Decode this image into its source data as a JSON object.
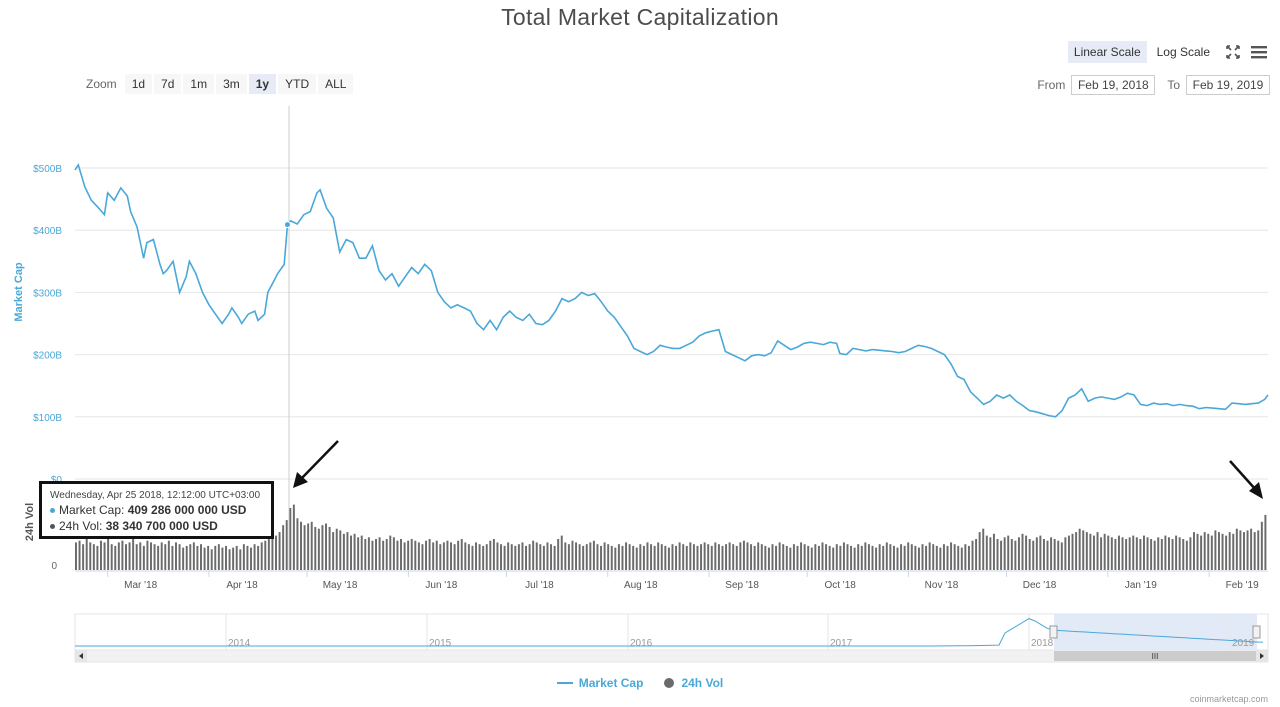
{
  "title": "Total Market Capitalization",
  "scale": {
    "linear": "Linear Scale",
    "log": "Log Scale",
    "icons": [
      "fullscreen-icon",
      "menu-icon"
    ]
  },
  "zoom": {
    "label": "Zoom",
    "buttons": [
      "1d",
      "7d",
      "1m",
      "3m",
      "1y",
      "YTD",
      "ALL"
    ],
    "active": "1y"
  },
  "range": {
    "from_label": "From",
    "from": "Feb 19, 2018",
    "to_label": "To",
    "to": "Feb 19, 2019"
  },
  "colors": {
    "market_cap": "#4aa8d8",
    "volume": "#6b6b6b",
    "navigator_mask": "#dfe8f7"
  },
  "chart_data": {
    "type": "line",
    "x_start": "2018-02-19",
    "x_end": "2019-02-19",
    "x_ticks": [
      "Mar '18",
      "Apr '18",
      "May '18",
      "Jun '18",
      "Jul '18",
      "Aug '18",
      "Sep '18",
      "Oct '18",
      "Nov '18",
      "Dec '18",
      "Jan '19",
      "Feb '19"
    ],
    "y_label": "Market Cap",
    "y_ticks": [
      "$0",
      "$100B",
      "$200B",
      "$300B",
      "$400B",
      "$500B"
    ],
    "ylim": [
      0,
      500
    ],
    "series": [
      {
        "name": "Market Cap",
        "unit": "B USD",
        "points": [
          [
            "2018-02-19",
            497
          ],
          [
            "2018-02-20",
            505
          ],
          [
            "2018-02-22",
            470
          ],
          [
            "2018-02-24",
            448
          ],
          [
            "2018-02-26",
            437
          ],
          [
            "2018-02-28",
            425
          ],
          [
            "2018-03-01",
            460
          ],
          [
            "2018-03-03",
            448
          ],
          [
            "2018-03-05",
            468
          ],
          [
            "2018-03-07",
            455
          ],
          [
            "2018-03-08",
            430
          ],
          [
            "2018-03-10",
            405
          ],
          [
            "2018-03-12",
            355
          ],
          [
            "2018-03-13",
            380
          ],
          [
            "2018-03-15",
            385
          ],
          [
            "2018-03-17",
            345
          ],
          [
            "2018-03-18",
            330
          ],
          [
            "2018-03-19",
            335
          ],
          [
            "2018-03-21",
            350
          ],
          [
            "2018-03-23",
            300
          ],
          [
            "2018-03-25",
            325
          ],
          [
            "2018-03-26",
            350
          ],
          [
            "2018-03-28",
            330
          ],
          [
            "2018-03-30",
            300
          ],
          [
            "2018-04-01",
            280
          ],
          [
            "2018-04-03",
            265
          ],
          [
            "2018-04-05",
            250
          ],
          [
            "2018-04-07",
            265
          ],
          [
            "2018-04-08",
            275
          ],
          [
            "2018-04-10",
            260
          ],
          [
            "2018-04-11",
            250
          ],
          [
            "2018-04-13",
            265
          ],
          [
            "2018-04-15",
            270
          ],
          [
            "2018-04-16",
            255
          ],
          [
            "2018-04-18",
            265
          ],
          [
            "2018-04-19",
            300
          ],
          [
            "2018-04-21",
            320
          ],
          [
            "2018-04-22",
            330
          ],
          [
            "2018-04-24",
            345
          ],
          [
            "2018-04-25",
            409
          ],
          [
            "2018-04-26",
            415
          ],
          [
            "2018-04-28",
            410
          ],
          [
            "2018-04-30",
            425
          ],
          [
            "2018-05-02",
            430
          ],
          [
            "2018-05-04",
            460
          ],
          [
            "2018-05-05",
            465
          ],
          [
            "2018-05-07",
            435
          ],
          [
            "2018-05-09",
            420
          ],
          [
            "2018-05-11",
            365
          ],
          [
            "2018-05-13",
            385
          ],
          [
            "2018-05-15",
            380
          ],
          [
            "2018-05-17",
            355
          ],
          [
            "2018-05-19",
            355
          ],
          [
            "2018-05-21",
            375
          ],
          [
            "2018-05-23",
            335
          ],
          [
            "2018-05-25",
            320
          ],
          [
            "2018-05-27",
            330
          ],
          [
            "2018-05-29",
            310
          ],
          [
            "2018-05-31",
            325
          ],
          [
            "2018-06-02",
            340
          ],
          [
            "2018-06-04",
            330
          ],
          [
            "2018-06-06",
            345
          ],
          [
            "2018-06-08",
            335
          ],
          [
            "2018-06-10",
            300
          ],
          [
            "2018-06-12",
            285
          ],
          [
            "2018-06-14",
            275
          ],
          [
            "2018-06-16",
            280
          ],
          [
            "2018-06-18",
            275
          ],
          [
            "2018-06-20",
            270
          ],
          [
            "2018-06-22",
            250
          ],
          [
            "2018-06-24",
            240
          ],
          [
            "2018-06-26",
            255
          ],
          [
            "2018-06-28",
            240
          ],
          [
            "2018-06-30",
            260
          ],
          [
            "2018-07-02",
            270
          ],
          [
            "2018-07-04",
            260
          ],
          [
            "2018-07-06",
            255
          ],
          [
            "2018-07-08",
            265
          ],
          [
            "2018-07-10",
            250
          ],
          [
            "2018-07-12",
            248
          ],
          [
            "2018-07-14",
            255
          ],
          [
            "2018-07-16",
            270
          ],
          [
            "2018-07-18",
            290
          ],
          [
            "2018-07-20",
            285
          ],
          [
            "2018-07-22",
            290
          ],
          [
            "2018-07-24",
            300
          ],
          [
            "2018-07-26",
            295
          ],
          [
            "2018-07-28",
            298
          ],
          [
            "2018-07-30",
            285
          ],
          [
            "2018-08-01",
            270
          ],
          [
            "2018-08-03",
            260
          ],
          [
            "2018-08-05",
            245
          ],
          [
            "2018-08-07",
            230
          ],
          [
            "2018-08-09",
            210
          ],
          [
            "2018-08-11",
            205
          ],
          [
            "2018-08-13",
            200
          ],
          [
            "2018-08-15",
            205
          ],
          [
            "2018-08-17",
            215
          ],
          [
            "2018-08-19",
            212
          ],
          [
            "2018-08-21",
            210
          ],
          [
            "2018-08-23",
            210
          ],
          [
            "2018-08-25",
            215
          ],
          [
            "2018-08-27",
            220
          ],
          [
            "2018-08-29",
            230
          ],
          [
            "2018-08-31",
            235
          ],
          [
            "2018-09-02",
            238
          ],
          [
            "2018-09-04",
            240
          ],
          [
            "2018-09-06",
            205
          ],
          [
            "2018-09-08",
            200
          ],
          [
            "2018-09-10",
            195
          ],
          [
            "2018-09-12",
            190
          ],
          [
            "2018-09-14",
            198
          ],
          [
            "2018-09-16",
            200
          ],
          [
            "2018-09-18",
            198
          ],
          [
            "2018-09-20",
            203
          ],
          [
            "2018-09-22",
            222
          ],
          [
            "2018-09-24",
            215
          ],
          [
            "2018-09-26",
            208
          ],
          [
            "2018-09-28",
            212
          ],
          [
            "2018-09-30",
            218
          ],
          [
            "2018-10-02",
            220
          ],
          [
            "2018-10-04",
            218
          ],
          [
            "2018-10-06",
            216
          ],
          [
            "2018-10-08",
            220
          ],
          [
            "2018-10-10",
            218
          ],
          [
            "2018-10-11",
            202
          ],
          [
            "2018-10-13",
            200
          ],
          [
            "2018-10-15",
            210
          ],
          [
            "2018-10-17",
            208
          ],
          [
            "2018-10-19",
            206
          ],
          [
            "2018-10-21",
            208
          ],
          [
            "2018-10-23",
            207
          ],
          [
            "2018-10-25",
            206
          ],
          [
            "2018-10-27",
            205
          ],
          [
            "2018-10-29",
            203
          ],
          [
            "2018-10-31",
            205
          ],
          [
            "2018-11-02",
            210
          ],
          [
            "2018-11-04",
            215
          ],
          [
            "2018-11-06",
            213
          ],
          [
            "2018-11-08",
            210
          ],
          [
            "2018-11-10",
            205
          ],
          [
            "2018-11-12",
            200
          ],
          [
            "2018-11-14",
            185
          ],
          [
            "2018-11-16",
            165
          ],
          [
            "2018-11-18",
            160
          ],
          [
            "2018-11-20",
            140
          ],
          [
            "2018-11-22",
            130
          ],
          [
            "2018-11-24",
            120
          ],
          [
            "2018-11-26",
            125
          ],
          [
            "2018-11-28",
            135
          ],
          [
            "2018-11-30",
            130
          ],
          [
            "2018-12-02",
            135
          ],
          [
            "2018-12-04",
            125
          ],
          [
            "2018-12-06",
            118
          ],
          [
            "2018-12-08",
            110
          ],
          [
            "2018-12-10",
            108
          ],
          [
            "2018-12-12",
            105
          ],
          [
            "2018-12-14",
            102
          ],
          [
            "2018-12-16",
            100
          ],
          [
            "2018-12-18",
            110
          ],
          [
            "2018-12-20",
            130
          ],
          [
            "2018-12-22",
            135
          ],
          [
            "2018-12-24",
            145
          ],
          [
            "2018-12-26",
            125
          ],
          [
            "2018-12-28",
            130
          ],
          [
            "2018-12-30",
            132
          ],
          [
            "2019-01-01",
            130
          ],
          [
            "2019-01-03",
            128
          ],
          [
            "2019-01-05",
            132
          ],
          [
            "2019-01-07",
            138
          ],
          [
            "2019-01-09",
            135
          ],
          [
            "2019-01-11",
            120
          ],
          [
            "2019-01-13",
            118
          ],
          [
            "2019-01-15",
            122
          ],
          [
            "2019-01-17",
            120
          ],
          [
            "2019-01-19",
            121
          ],
          [
            "2019-01-21",
            118
          ],
          [
            "2019-01-23",
            120
          ],
          [
            "2019-01-25",
            118
          ],
          [
            "2019-01-27",
            117
          ],
          [
            "2019-01-29",
            113
          ],
          [
            "2019-01-31",
            115
          ],
          [
            "2019-02-02",
            114
          ],
          [
            "2019-02-04",
            113
          ],
          [
            "2019-02-06",
            112
          ],
          [
            "2019-02-08",
            122
          ],
          [
            "2019-02-10",
            121
          ],
          [
            "2019-02-12",
            120
          ],
          [
            "2019-02-14",
            121
          ],
          [
            "2019-02-16",
            122
          ],
          [
            "2019-02-18",
            128
          ],
          [
            "2019-02-19",
            135
          ]
        ]
      },
      {
        "name": "24h Vol",
        "unit": "B USD",
        "ylim": [
          0,
          50
        ],
        "bars_per_day": "daily values shown as bars",
        "values": [
          16,
          17,
          15,
          18,
          16,
          15,
          14,
          17,
          16,
          18,
          15,
          14,
          16,
          17,
          15,
          16,
          18,
          15,
          16,
          14,
          17,
          16,
          15,
          14,
          16,
          15,
          17,
          14,
          16,
          15,
          13,
          14,
          15,
          16,
          14,
          15,
          13,
          14,
          12,
          14,
          15,
          13,
          14,
          12,
          13,
          14,
          12,
          15,
          14,
          13,
          15,
          14,
          16,
          17,
          18,
          19,
          20,
          22,
          26,
          29,
          36,
          38,
          30,
          28,
          26,
          27,
          28,
          25,
          24,
          26,
          27,
          25,
          22,
          24,
          23,
          21,
          22,
          20,
          21,
          19,
          20,
          18,
          19,
          17,
          18,
          19,
          17,
          18,
          20,
          19,
          17,
          18,
          16,
          17,
          18,
          17,
          16,
          15,
          17,
          18,
          16,
          17,
          15,
          16,
          17,
          16,
          15,
          17,
          18,
          16,
          15,
          14,
          16,
          15,
          14,
          15,
          17,
          18,
          16,
          15,
          14,
          16,
          15,
          14,
          15,
          16,
          14,
          15,
          17,
          16,
          15,
          14,
          16,
          15,
          14,
          18,
          20,
          16,
          15,
          17,
          16,
          15,
          14,
          15,
          16,
          17,
          15,
          14,
          16,
          15,
          14,
          13,
          15,
          14,
          16,
          15,
          14,
          13,
          15,
          14,
          16,
          15,
          14,
          16,
          15,
          14,
          13,
          15,
          14,
          16,
          15,
          14,
          16,
          15,
          14,
          15,
          16,
          15,
          14,
          16,
          15,
          14,
          15,
          16,
          15,
          14,
          16,
          17,
          16,
          15,
          14,
          16,
          15,
          14,
          13,
          15,
          14,
          16,
          15,
          14,
          13,
          15,
          14,
          16,
          15,
          14,
          13,
          15,
          14,
          16,
          15,
          14,
          13,
          15,
          14,
          16,
          15,
          14,
          13,
          15,
          14,
          16,
          15,
          14,
          13,
          15,
          14,
          16,
          15,
          14,
          13,
          15,
          14,
          16,
          15,
          14,
          13,
          15,
          14,
          16,
          15,
          14,
          13,
          15,
          14,
          16,
          15,
          14,
          13,
          15,
          14,
          17,
          18,
          22,
          24,
          20,
          19,
          21,
          18,
          17,
          19,
          20,
          18,
          17,
          19,
          21,
          20,
          18,
          17,
          19,
          20,
          18,
          17,
          19,
          18,
          17,
          16,
          19,
          20,
          21,
          22,
          24,
          23,
          22,
          21,
          20,
          22,
          19,
          21,
          20,
          19,
          18,
          20,
          19,
          18,
          19,
          20,
          19,
          18,
          20,
          19,
          18,
          17,
          19,
          18,
          20,
          19,
          18,
          20,
          19,
          18,
          17,
          19,
          22,
          21,
          20,
          22,
          21,
          20,
          23,
          22,
          21,
          20,
          22,
          21,
          24,
          23,
          22,
          23,
          24,
          22,
          23,
          28,
          32
        ],
        "y_label": "24h Vol",
        "y_ticks": [
          "0"
        ]
      }
    ],
    "navigator": {
      "x_ticks": [
        "2014",
        "2015",
        "2016",
        "2017",
        "2018",
        "2019"
      ]
    },
    "legend": [
      "Market Cap",
      "24h Vol"
    ],
    "legend_placement": "bottom-center"
  },
  "tooltip": {
    "date": "Wednesday, Apr 25 2018, 12:12:00 UTC+03:00",
    "market_cap_label": "Market Cap:",
    "market_cap_value": "409 286 000 000 USD",
    "vol_label": "24h Vol:",
    "vol_value": "38 340 700 000 USD"
  },
  "credits": "coinmarketcap.com"
}
